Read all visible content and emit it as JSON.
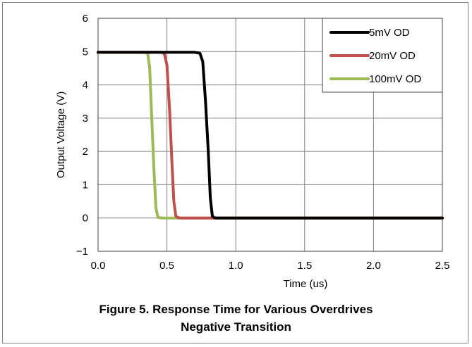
{
  "chart_data": {
    "type": "line",
    "xlabel": "Time (us)",
    "ylabel": "Output Voltage (V)",
    "xlim": [
      0.0,
      2.5
    ],
    "ylim": [
      -1,
      6
    ],
    "x_ticks": [
      "0.0",
      "0.5",
      "1.0",
      "1.5",
      "2.0",
      "2.5"
    ],
    "y_ticks": [
      "−1",
      "0",
      "1",
      "2",
      "3",
      "4",
      "5",
      "6"
    ],
    "grid": true,
    "legend_position": "top-right",
    "series": [
      {
        "name": "5mV OD",
        "color": "#000000",
        "points": [
          [
            0.0,
            4.98
          ],
          [
            0.7,
            4.98
          ],
          [
            0.74,
            4.95
          ],
          [
            0.76,
            4.7
          ],
          [
            0.78,
            3.5
          ],
          [
            0.8,
            2.0
          ],
          [
            0.815,
            0.6
          ],
          [
            0.83,
            0.05
          ],
          [
            0.85,
            0.0
          ],
          [
            1.5,
            0.0
          ],
          [
            2.5,
            0.0
          ]
        ]
      },
      {
        "name": "20mV OD",
        "color": "#c0504d",
        "points": [
          [
            0.0,
            4.98
          ],
          [
            0.45,
            4.98
          ],
          [
            0.48,
            4.95
          ],
          [
            0.5,
            4.6
          ],
          [
            0.52,
            3.2
          ],
          [
            0.535,
            1.8
          ],
          [
            0.55,
            0.5
          ],
          [
            0.565,
            0.05
          ],
          [
            0.59,
            0.0
          ],
          [
            1.5,
            0.0
          ],
          [
            2.5,
            0.0
          ]
        ]
      },
      {
        "name": "100mV OD",
        "color": "#9bbb59",
        "points": [
          [
            0.0,
            4.98
          ],
          [
            0.34,
            4.98
          ],
          [
            0.36,
            4.95
          ],
          [
            0.375,
            4.5
          ],
          [
            0.39,
            3.0
          ],
          [
            0.405,
            1.5
          ],
          [
            0.42,
            0.3
          ],
          [
            0.435,
            0.02
          ],
          [
            0.46,
            0.0
          ],
          [
            1.5,
            0.0
          ],
          [
            2.5,
            0.0
          ]
        ]
      }
    ]
  },
  "caption": {
    "line1": "Figure 5. Response Time for Various Overdrives",
    "line2": "Negative Transition"
  }
}
